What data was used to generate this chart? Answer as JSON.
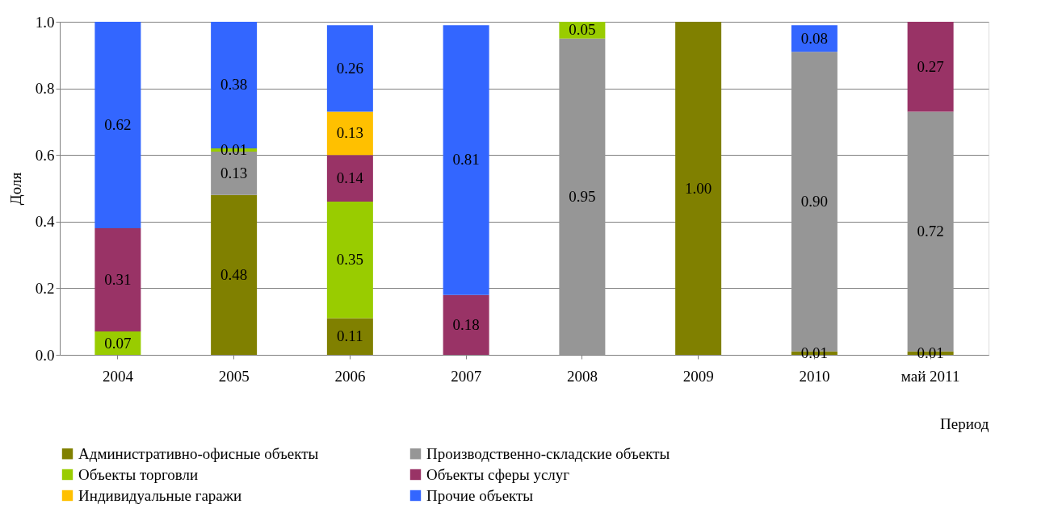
{
  "chart_data": {
    "type": "bar",
    "stacked": true,
    "xlabel": "Период",
    "ylabel": "Доля",
    "categories": [
      "2004",
      "2005",
      "2006",
      "2007",
      "2008",
      "2009",
      "2010",
      "май 2011"
    ],
    "series": [
      {
        "name": "Административно-офисные объекты",
        "color": "#808000",
        "values": [
          null,
          0.48,
          0.11,
          null,
          null,
          1.0,
          0.01,
          0.01
        ],
        "value_labels": [
          null,
          "0.48",
          "0.11",
          null,
          null,
          "1.00",
          "0.01",
          "0.01"
        ]
      },
      {
        "name": "Производственно-складские объекты",
        "color": "#969696",
        "values": [
          null,
          0.13,
          null,
          null,
          0.95,
          null,
          0.9,
          0.72
        ],
        "value_labels": [
          null,
          "0.13",
          null,
          null,
          "0.95",
          null,
          "0.90",
          "0.72"
        ]
      },
      {
        "name": "Объекты торговли",
        "color": "#99cc00",
        "values": [
          0.07,
          0.01,
          0.35,
          null,
          0.05,
          null,
          null,
          null
        ],
        "value_labels": [
          "0.07",
          "0.01",
          "0.35",
          null,
          "0.05",
          null,
          null,
          null
        ]
      },
      {
        "name": "Объекты сферы услуг",
        "color": "#993366",
        "values": [
          0.31,
          null,
          0.14,
          0.18,
          null,
          null,
          null,
          0.27
        ],
        "value_labels": [
          "0.31",
          null,
          "0.14",
          "0.18",
          null,
          null,
          null,
          "0.27"
        ]
      },
      {
        "name": "Индивидуальные гаражи",
        "color": "#ffc000",
        "values": [
          null,
          null,
          0.13,
          null,
          null,
          null,
          null,
          null
        ],
        "value_labels": [
          null,
          null,
          "0.13",
          null,
          null,
          null,
          null,
          null
        ]
      },
      {
        "name": "Прочие объекты",
        "color": "#3366ff",
        "values": [
          0.62,
          0.38,
          0.26,
          0.81,
          null,
          null,
          0.08,
          null
        ],
        "value_labels": [
          "0.62",
          "0.38",
          "0.26",
          "0.81",
          null,
          null,
          "0.08",
          null
        ]
      }
    ],
    "ylim": [
      0,
      1.0
    ],
    "yticks": [
      {
        "value": 0,
        "label": "0.0"
      },
      {
        "value": 0.2,
        "label": "0.2"
      },
      {
        "value": 0.4,
        "label": "0.4"
      },
      {
        "value": 0.6,
        "label": "0.6"
      },
      {
        "value": 0.8,
        "label": "0.8"
      },
      {
        "value": 1.0,
        "label": "1.0"
      }
    ],
    "grid": "y",
    "legend": "bottom"
  }
}
